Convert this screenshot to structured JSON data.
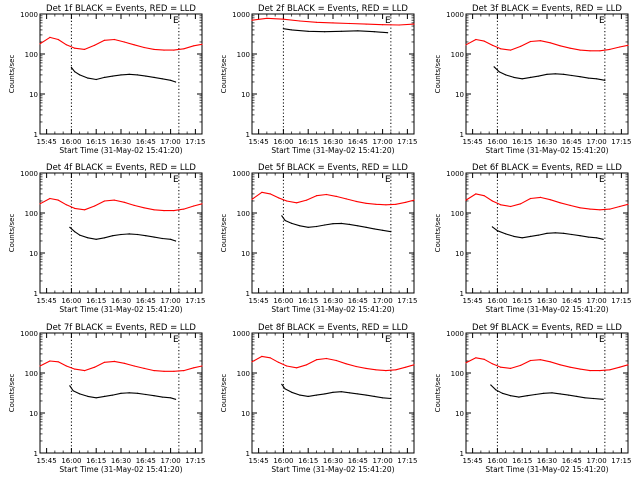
{
  "figure": {
    "x_tick_labels": [
      "15:45",
      "16:00",
      "16:15",
      "16:30",
      "16:45",
      "17:00",
      "17:15"
    ],
    "x_label": "Start Time (31-May-02 15:41:20)",
    "y_label": "Counts/sec",
    "y_tick_labels": [
      "1",
      "10",
      "100",
      "1000"
    ],
    "colors": {
      "events": "#000000",
      "lld": "#ff0000",
      "axes": "#000000",
      "background": "#ffffff"
    }
  },
  "chart_data": [
    {
      "type": "line",
      "title": "Det 1f BLACK = Events, RED = LLD",
      "xlabel": "Start Time (31-May-02 15:41:20)",
      "ylabel": "Counts/sec",
      "xlim": [
        "15:41",
        "17:19"
      ],
      "ylim": [
        1,
        1000
      ],
      "yscale": "log",
      "grid": false,
      "markers": {
        "start": "16:00",
        "end": "17:05",
        "end_letter": "E"
      },
      "series": [
        {
          "key": "LLD",
          "x": [
            "15:41",
            "15:47",
            "15:52",
            "15:57",
            "16:02",
            "16:08",
            "16:14",
            "16:20",
            "16:26",
            "16:32",
            "16:38",
            "16:44",
            "16:50",
            "16:56",
            "17:02",
            "17:08",
            "17:14",
            "17:19"
          ],
          "y": [
            180,
            260,
            230,
            170,
            140,
            130,
            165,
            220,
            230,
            200,
            170,
            145,
            130,
            125,
            125,
            135,
            160,
            175
          ]
        },
        {
          "key": "Events",
          "x": [
            "16:00",
            "16:02",
            "16:05",
            "16:10",
            "16:15",
            "16:20",
            "16:25",
            "16:30",
            "16:35",
            "16:40",
            "16:45",
            "16:50",
            "16:55",
            "17:00",
            "17:03"
          ],
          "y": [
            46,
            36,
            30,
            25,
            23,
            26,
            28,
            30,
            31,
            30,
            28,
            26,
            24,
            22,
            20
          ]
        }
      ]
    },
    {
      "type": "line",
      "title": "Det 2f BLACK = Events, RED = LLD",
      "xlabel": "Start Time (31-May-02 15:41:20)",
      "ylabel": "Counts/sec",
      "xlim": [
        "15:41",
        "17:19"
      ],
      "ylim": [
        1,
        1000
      ],
      "yscale": "log",
      "grid": false,
      "markers": {
        "start": "16:00",
        "end": "17:05",
        "end_letter": "E"
      },
      "series": [
        {
          "key": "LLD",
          "x": [
            "15:41",
            "15:50",
            "16:00",
            "16:10",
            "16:20",
            "16:30",
            "16:40",
            "16:50",
            "17:00",
            "17:10",
            "17:19"
          ],
          "y": [
            700,
            780,
            740,
            670,
            620,
            600,
            580,
            560,
            540,
            530,
            560
          ]
        },
        {
          "key": "Events",
          "x": [
            "16:00",
            "16:05",
            "16:15",
            "16:25",
            "16:35",
            "16:45",
            "16:55",
            "17:03"
          ],
          "y": [
            430,
            400,
            370,
            360,
            370,
            380,
            360,
            340
          ]
        }
      ]
    },
    {
      "type": "line",
      "title": "Det 3f BLACK = Events, RED = LLD",
      "xlabel": "Start Time (31-May-02 15:41:20)",
      "ylabel": "Counts/sec",
      "xlim": [
        "15:41",
        "17:19"
      ],
      "ylim": [
        1,
        1000
      ],
      "yscale": "log",
      "grid": false,
      "markers": {
        "start": "16:00",
        "end": "17:05",
        "end_letter": "E"
      },
      "series": [
        {
          "key": "LLD",
          "x": [
            "15:41",
            "15:47",
            "15:52",
            "15:57",
            "16:02",
            "16:08",
            "16:14",
            "16:20",
            "16:26",
            "16:32",
            "16:38",
            "16:44",
            "16:50",
            "16:56",
            "17:02",
            "17:08",
            "17:14",
            "17:19"
          ],
          "y": [
            170,
            230,
            210,
            165,
            135,
            125,
            155,
            205,
            215,
            190,
            160,
            140,
            125,
            120,
            120,
            130,
            150,
            165
          ]
        },
        {
          "key": "Events",
          "x": [
            "15:58",
            "16:01",
            "16:05",
            "16:10",
            "16:15",
            "16:20",
            "16:25",
            "16:30",
            "16:35",
            "16:40",
            "16:45",
            "16:50",
            "16:55",
            "17:00",
            "17:05"
          ],
          "y": [
            48,
            36,
            30,
            26,
            24,
            26,
            28,
            31,
            32,
            31,
            29,
            27,
            25,
            24,
            22
          ]
        }
      ]
    },
    {
      "type": "line",
      "title": "Det 4f BLACK = Events, RED = LLD",
      "xlabel": "Start Time (31-May-02 15:41:20)",
      "ylabel": "Counts/sec",
      "xlim": [
        "15:41",
        "17:19"
      ],
      "ylim": [
        1,
        1000
      ],
      "yscale": "log",
      "grid": false,
      "markers": {
        "start": "16:00",
        "end": "17:05",
        "end_letter": "E"
      },
      "series": [
        {
          "key": "LLD",
          "x": [
            "15:41",
            "15:47",
            "15:52",
            "15:57",
            "16:02",
            "16:08",
            "16:14",
            "16:20",
            "16:26",
            "16:32",
            "16:38",
            "16:44",
            "16:50",
            "16:56",
            "17:02",
            "17:08",
            "17:14",
            "17:19"
          ],
          "y": [
            170,
            230,
            210,
            160,
            130,
            120,
            150,
            200,
            210,
            185,
            155,
            135,
            120,
            115,
            115,
            125,
            150,
            170
          ]
        },
        {
          "key": "Events",
          "x": [
            "15:59",
            "16:02",
            "16:05",
            "16:10",
            "16:15",
            "16:20",
            "16:25",
            "16:30",
            "16:35",
            "16:40",
            "16:45",
            "16:50",
            "16:55",
            "17:00",
            "17:03"
          ],
          "y": [
            44,
            34,
            28,
            24,
            22,
            24,
            27,
            29,
            30,
            29,
            27,
            25,
            23,
            22,
            20
          ]
        }
      ]
    },
    {
      "type": "line",
      "title": "Det 5f BLACK = Events, RED = LLD",
      "xlabel": "Start Time (31-May-02 15:41:20)",
      "ylabel": "Counts/sec",
      "xlim": [
        "15:41",
        "17:19"
      ],
      "ylim": [
        1,
        1000
      ],
      "yscale": "log",
      "grid": false,
      "markers": {
        "start": "16:00",
        "end": "17:05",
        "end_letter": "E"
      },
      "series": [
        {
          "key": "LLD",
          "x": [
            "15:41",
            "15:47",
            "15:52",
            "15:57",
            "16:02",
            "16:08",
            "16:14",
            "16:20",
            "16:26",
            "16:32",
            "16:38",
            "16:44",
            "16:50",
            "16:56",
            "17:02",
            "17:08",
            "17:14",
            "17:19"
          ],
          "y": [
            220,
            330,
            300,
            240,
            200,
            180,
            210,
            270,
            290,
            260,
            225,
            195,
            175,
            165,
            160,
            165,
            185,
            210
          ]
        },
        {
          "key": "Events",
          "x": [
            "15:59",
            "16:01",
            "16:05",
            "16:10",
            "16:15",
            "16:20",
            "16:25",
            "16:30",
            "16:35",
            "16:40",
            "16:45",
            "16:50",
            "16:55",
            "17:00",
            "17:05"
          ],
          "y": [
            85,
            65,
            55,
            48,
            44,
            46,
            50,
            54,
            55,
            52,
            48,
            44,
            40,
            37,
            34
          ]
        }
      ]
    },
    {
      "type": "line",
      "title": "Det 6f BLACK = Events, RED = LLD",
      "xlabel": "Start Time (31-May-02 15:41:20)",
      "ylabel": "Counts/sec",
      "xlim": [
        "15:41",
        "17:19"
      ],
      "ylim": [
        1,
        1000
      ],
      "yscale": "log",
      "grid": false,
      "markers": {
        "start": "16:00",
        "end": "17:05",
        "end_letter": "E"
      },
      "series": [
        {
          "key": "LLD",
          "x": [
            "15:41",
            "15:47",
            "15:52",
            "15:57",
            "16:02",
            "16:08",
            "16:14",
            "16:20",
            "16:26",
            "16:32",
            "16:38",
            "16:44",
            "16:50",
            "16:56",
            "17:02",
            "17:08",
            "17:14",
            "17:19"
          ],
          "y": [
            210,
            300,
            270,
            200,
            160,
            145,
            170,
            230,
            245,
            215,
            180,
            155,
            135,
            125,
            120,
            125,
            145,
            165
          ]
        },
        {
          "key": "Events",
          "x": [
            "15:57",
            "16:00",
            "16:05",
            "16:10",
            "16:15",
            "16:20",
            "16:25",
            "16:30",
            "16:35",
            "16:40",
            "16:45",
            "16:50",
            "16:55",
            "17:00",
            "17:04"
          ],
          "y": [
            45,
            36,
            30,
            26,
            24,
            26,
            28,
            31,
            32,
            31,
            29,
            27,
            25,
            24,
            22
          ]
        }
      ]
    },
    {
      "type": "line",
      "title": "Det 7f BLACK = Events, RED = LLD",
      "xlabel": "Start Time (31-May-02 15:41:20)",
      "ylabel": "Counts/sec",
      "xlim": [
        "15:41",
        "17:19"
      ],
      "ylim": [
        1,
        1000
      ],
      "yscale": "log",
      "grid": false,
      "markers": {
        "start": "16:00",
        "end": "17:05",
        "end_letter": "E"
      },
      "series": [
        {
          "key": "LLD",
          "x": [
            "15:41",
            "15:47",
            "15:52",
            "15:57",
            "16:02",
            "16:08",
            "16:14",
            "16:20",
            "16:26",
            "16:32",
            "16:38",
            "16:44",
            "16:50",
            "16:56",
            "17:02",
            "17:08",
            "17:14",
            "17:19"
          ],
          "y": [
            150,
            200,
            190,
            150,
            125,
            115,
            140,
            185,
            195,
            175,
            150,
            130,
            115,
            110,
            110,
            115,
            135,
            150
          ]
        },
        {
          "key": "Events",
          "x": [
            "15:59",
            "16:01",
            "16:05",
            "16:10",
            "16:15",
            "16:20",
            "16:25",
            "16:30",
            "16:35",
            "16:40",
            "16:45",
            "16:50",
            "16:55",
            "17:00",
            "17:03"
          ],
          "y": [
            48,
            36,
            30,
            26,
            24,
            26,
            28,
            31,
            32,
            31,
            29,
            27,
            25,
            24,
            22
          ]
        }
      ]
    },
    {
      "type": "line",
      "title": "Det 8f BLACK = Events, RED = LLD",
      "xlabel": "Start Time (31-May-02 15:41:20)",
      "ylabel": "Counts/sec",
      "xlim": [
        "15:41",
        "17:19"
      ],
      "ylim": [
        1,
        1000
      ],
      "yscale": "log",
      "grid": false,
      "markers": {
        "start": "16:00",
        "end": "17:05",
        "end_letter": "E"
      },
      "series": [
        {
          "key": "LLD",
          "x": [
            "15:41",
            "15:47",
            "15:52",
            "15:57",
            "16:02",
            "16:08",
            "16:14",
            "16:20",
            "16:26",
            "16:32",
            "16:38",
            "16:44",
            "16:50",
            "16:56",
            "17:02",
            "17:08",
            "17:14",
            "17:19"
          ],
          "y": [
            190,
            260,
            240,
            185,
            150,
            135,
            160,
            215,
            230,
            205,
            170,
            145,
            130,
            120,
            115,
            120,
            140,
            160
          ]
        },
        {
          "key": "Events",
          "x": [
            "15:59",
            "16:01",
            "16:05",
            "16:10",
            "16:15",
            "16:20",
            "16:25",
            "16:30",
            "16:35",
            "16:40",
            "16:45",
            "16:50",
            "16:55",
            "17:00",
            "17:05"
          ],
          "y": [
            52,
            40,
            33,
            28,
            26,
            28,
            30,
            33,
            34,
            32,
            30,
            28,
            26,
            24,
            23
          ]
        }
      ]
    },
    {
      "type": "line",
      "title": "Det 9f BLACK = Events, RED = LLD",
      "xlabel": "Start Time (31-May-02 15:41:20)",
      "ylabel": "Counts/sec",
      "xlim": [
        "15:41",
        "17:19"
      ],
      "ylim": [
        1,
        1000
      ],
      "yscale": "log",
      "grid": false,
      "markers": {
        "start": "16:00",
        "end": "17:05",
        "end_letter": "E"
      },
      "series": [
        {
          "key": "LLD",
          "x": [
            "15:41",
            "15:47",
            "15:52",
            "15:57",
            "16:02",
            "16:08",
            "16:14",
            "16:20",
            "16:26",
            "16:32",
            "16:38",
            "16:44",
            "16:50",
            "16:56",
            "17:02",
            "17:08",
            "17:14",
            "17:19"
          ],
          "y": [
            180,
            240,
            220,
            170,
            140,
            130,
            155,
            205,
            215,
            190,
            160,
            140,
            125,
            115,
            115,
            120,
            140,
            160
          ]
        },
        {
          "key": "Events",
          "x": [
            "15:56",
            "15:59",
            "16:03",
            "16:08",
            "16:13",
            "16:18",
            "16:23",
            "16:28",
            "16:33",
            "16:38",
            "16:43",
            "16:48",
            "16:53",
            "16:58",
            "17:04"
          ],
          "y": [
            50,
            38,
            31,
            27,
            25,
            27,
            29,
            31,
            32,
            30,
            28,
            26,
            24,
            23,
            22
          ]
        }
      ]
    }
  ]
}
